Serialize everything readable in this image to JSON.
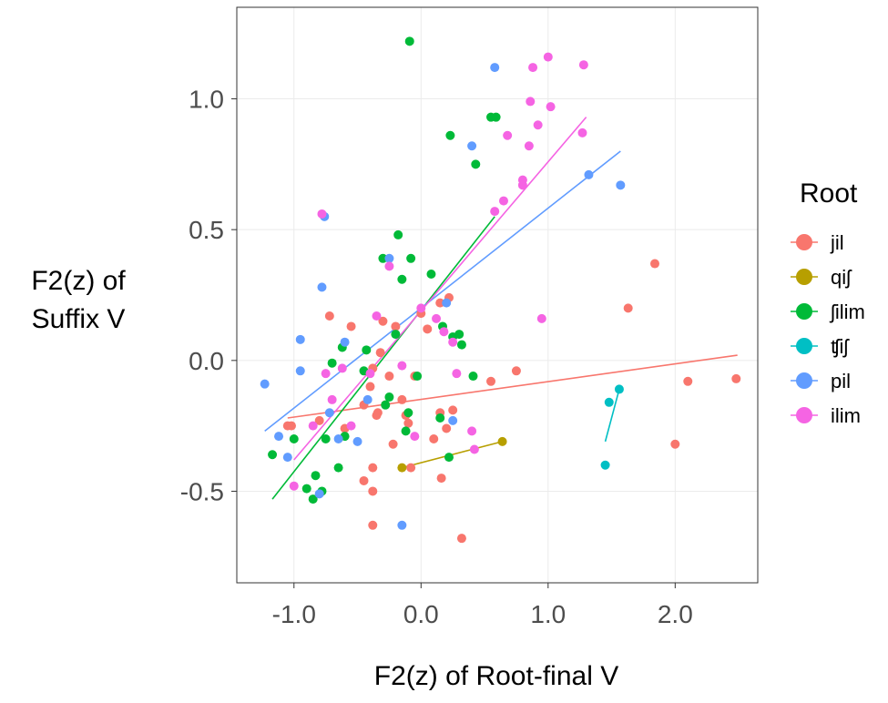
{
  "chart_data": {
    "type": "scatter",
    "xlabel": "F2(z) of Root-final V",
    "ylabel": [
      "F2(z) of",
      "Suffix V"
    ],
    "xlim": [
      -1.45,
      2.65
    ],
    "ylim": [
      -0.85,
      1.35
    ],
    "x_ticks": [
      -1.0,
      0.0,
      1.0,
      2.0
    ],
    "x_tick_labels": [
      "-1.0",
      "0.0",
      "1.0",
      "2.0"
    ],
    "y_ticks": [
      -0.5,
      0.0,
      0.5,
      1.0
    ],
    "y_tick_labels": [
      "-0.5",
      "0.0",
      "0.5",
      "1.0"
    ],
    "grid": true,
    "legend": {
      "title": "Root",
      "position": "right"
    },
    "series": [
      {
        "name": "jil",
        "color": "#F8766D",
        "fit": [
          [
            -1.05,
            -0.22
          ],
          [
            2.49,
            0.02
          ]
        ],
        "points": [
          [
            -1.02,
            -0.25
          ],
          [
            -1.05,
            -0.25
          ],
          [
            -0.8,
            -0.23
          ],
          [
            -0.72,
            0.17
          ],
          [
            -0.55,
            0.13
          ],
          [
            -0.45,
            -0.17
          ],
          [
            -0.4,
            -0.1
          ],
          [
            -0.38,
            -0.03
          ],
          [
            -0.35,
            -0.21
          ],
          [
            -0.34,
            -0.2
          ],
          [
            -0.32,
            0.03
          ],
          [
            -0.3,
            0.15
          ],
          [
            -0.28,
            -0.17
          ],
          [
            -0.25,
            -0.06
          ],
          [
            -0.22,
            -0.32
          ],
          [
            -0.2,
            0.13
          ],
          [
            -0.15,
            -0.15
          ],
          [
            -0.12,
            -0.21
          ],
          [
            -0.1,
            -0.24
          ],
          [
            -0.05,
            -0.06
          ],
          [
            0.0,
            0.18
          ],
          [
            0.05,
            0.12
          ],
          [
            0.1,
            -0.3
          ],
          [
            0.15,
            -0.2
          ],
          [
            0.15,
            0.22
          ],
          [
            0.2,
            -0.26
          ],
          [
            0.22,
            0.24
          ],
          [
            0.25,
            -0.19
          ],
          [
            0.32,
            -0.68
          ],
          [
            0.55,
            -0.08
          ],
          [
            0.75,
            -0.04
          ],
          [
            -0.38,
            -0.63
          ],
          [
            -0.38,
            -0.5
          ],
          [
            -0.38,
            -0.41
          ],
          [
            -0.45,
            -0.46
          ],
          [
            0.16,
            -0.45
          ],
          [
            -0.08,
            -0.41
          ],
          [
            -0.6,
            -0.26
          ],
          [
            1.63,
            0.2
          ],
          [
            1.84,
            0.37
          ],
          [
            2.0,
            -0.32
          ],
          [
            2.1,
            -0.08
          ],
          [
            2.48,
            -0.07
          ]
        ]
      },
      {
        "name": "qiʃ",
        "color": "#B79F00",
        "fit": [
          [
            -0.15,
            -0.41
          ],
          [
            0.64,
            -0.31
          ]
        ],
        "points": [
          [
            -0.15,
            -0.41
          ],
          [
            0.64,
            -0.31
          ]
        ]
      },
      {
        "name": "ʃilim",
        "color": "#00BA38",
        "fit": [
          [
            -1.17,
            -0.53
          ],
          [
            0.58,
            0.55
          ]
        ],
        "points": [
          [
            -1.17,
            -0.36
          ],
          [
            -1.0,
            -0.3
          ],
          [
            -0.9,
            -0.49
          ],
          [
            -0.85,
            -0.53
          ],
          [
            -0.83,
            -0.44
          ],
          [
            -0.78,
            -0.5
          ],
          [
            -0.75,
            -0.3
          ],
          [
            -0.7,
            -0.01
          ],
          [
            -0.65,
            -0.41
          ],
          [
            -0.62,
            0.05
          ],
          [
            -0.6,
            -0.29
          ],
          [
            -0.45,
            -0.04
          ],
          [
            -0.43,
            0.04
          ],
          [
            -0.3,
            0.39
          ],
          [
            -0.28,
            -0.17
          ],
          [
            -0.25,
            -0.14
          ],
          [
            -0.2,
            0.1
          ],
          [
            -0.18,
            0.48
          ],
          [
            -0.15,
            0.31
          ],
          [
            -0.12,
            -0.27
          ],
          [
            -0.1,
            -0.2
          ],
          [
            -0.08,
            0.39
          ],
          [
            -0.03,
            -0.06
          ],
          [
            0.08,
            0.33
          ],
          [
            0.15,
            -0.22
          ],
          [
            0.17,
            0.13
          ],
          [
            0.22,
            -0.37
          ],
          [
            0.25,
            0.09
          ],
          [
            0.3,
            0.1
          ],
          [
            0.32,
            0.06
          ],
          [
            0.41,
            -0.06
          ],
          [
            0.43,
            0.75
          ],
          [
            0.23,
            0.86
          ],
          [
            0.55,
            0.93
          ],
          [
            0.59,
            0.93
          ],
          [
            -0.09,
            1.22
          ]
        ]
      },
      {
        "name": "ʧiʃ",
        "color": "#00BFC4",
        "fit": [
          [
            1.45,
            -0.31
          ],
          [
            1.56,
            -0.11
          ]
        ],
        "points": [
          [
            1.45,
            -0.4
          ],
          [
            1.48,
            -0.16
          ],
          [
            1.56,
            -0.11
          ]
        ]
      },
      {
        "name": "pil",
        "color": "#619CFF",
        "fit": [
          [
            -1.23,
            -0.27
          ],
          [
            1.57,
            0.8
          ]
        ],
        "points": [
          [
            -1.23,
            -0.09
          ],
          [
            -1.12,
            -0.29
          ],
          [
            -1.05,
            -0.37
          ],
          [
            -0.95,
            0.08
          ],
          [
            -0.95,
            -0.04
          ],
          [
            -0.78,
            0.28
          ],
          [
            -0.76,
            0.55
          ],
          [
            -0.72,
            -0.2
          ],
          [
            -0.8,
            -0.51
          ],
          [
            -0.65,
            -0.3
          ],
          [
            -0.6,
            0.07
          ],
          [
            -0.5,
            -0.31
          ],
          [
            -0.42,
            -0.15
          ],
          [
            -0.25,
            0.39
          ],
          [
            -0.15,
            -0.63
          ],
          [
            0.2,
            0.22
          ],
          [
            0.25,
            -0.23
          ],
          [
            0.4,
            0.82
          ],
          [
            0.58,
            1.12
          ],
          [
            1.32,
            0.71
          ],
          [
            1.57,
            0.67
          ]
        ]
      },
      {
        "name": "ilim",
        "color": "#F564E3",
        "fit": [
          [
            -1.0,
            -0.38
          ],
          [
            1.3,
            0.93
          ]
        ],
        "points": [
          [
            -1.0,
            -0.48
          ],
          [
            -0.85,
            -0.25
          ],
          [
            -0.78,
            0.56
          ],
          [
            -0.75,
            -0.05
          ],
          [
            -0.7,
            -0.15
          ],
          [
            -0.62,
            -0.03
          ],
          [
            -0.55,
            -0.25
          ],
          [
            -0.4,
            -0.05
          ],
          [
            -0.35,
            0.17
          ],
          [
            -0.25,
            0.36
          ],
          [
            -0.15,
            -0.02
          ],
          [
            -0.05,
            -0.29
          ],
          [
            0.0,
            0.2
          ],
          [
            0.12,
            0.16
          ],
          [
            0.18,
            0.11
          ],
          [
            0.25,
            0.07
          ],
          [
            0.28,
            -0.05
          ],
          [
            0.4,
            -0.27
          ],
          [
            0.42,
            -0.34
          ],
          [
            0.58,
            0.57
          ],
          [
            0.65,
            0.61
          ],
          [
            0.68,
            0.86
          ],
          [
            0.8,
            0.67
          ],
          [
            0.8,
            0.69
          ],
          [
            0.85,
            0.82
          ],
          [
            0.86,
            0.99
          ],
          [
            0.88,
            1.12
          ],
          [
            0.92,
            0.9
          ],
          [
            0.95,
            0.16
          ],
          [
            1.0,
            1.16
          ],
          [
            1.02,
            0.97
          ],
          [
            1.27,
            0.87
          ],
          [
            1.28,
            1.13
          ]
        ]
      }
    ]
  }
}
